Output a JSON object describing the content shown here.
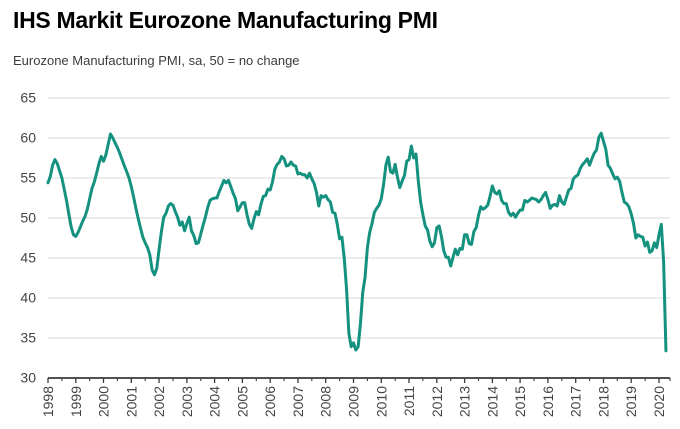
{
  "header": {
    "title": "IHS Markit Eurozone Manufacturing PMI",
    "subtitle": "Eurozone Manufacturing PMI, sa, 50 = no change"
  },
  "chart_data": {
    "type": "line",
    "title": "IHS Markit Eurozone Manufacturing PMI",
    "subtitle": "Eurozone Manufacturing PMI, sa, 50 = no change",
    "grid": "horizontal",
    "legend": "none",
    "x_axis": {
      "frequency": "monthly",
      "start": "1998-01",
      "end": "2020-04",
      "tick_labels": [
        "1998",
        "1999",
        "2000",
        "2001",
        "2002",
        "2003",
        "2004",
        "2005",
        "2006",
        "2007",
        "2008",
        "2009",
        "2010",
        "2011",
        "2012",
        "2013",
        "2014",
        "2015",
        "2016",
        "2017",
        "2018",
        "2019",
        "2020"
      ]
    },
    "y_axis": {
      "range": [
        30,
        65
      ],
      "ticks": [
        30,
        35,
        40,
        45,
        50,
        55,
        60,
        65
      ]
    },
    "colors": {
      "gridline": "#d9d9d9",
      "axis": "#3a3a3a",
      "label": "#444444"
    },
    "series": [
      {
        "name": "Eurozone Manufacturing PMI (sa)",
        "color": "#14917f",
        "values": [
          54.4,
          55.2,
          56.6,
          57.3,
          56.8,
          55.9,
          55.0,
          53.6,
          52.2,
          50.5,
          48.9,
          47.9,
          47.7,
          48.2,
          48.9,
          49.6,
          50.2,
          51.1,
          52.4,
          53.7,
          54.5,
          55.6,
          56.8,
          57.7,
          57.1,
          57.9,
          59.2,
          60.5,
          60.0,
          59.4,
          58.8,
          58.1,
          57.3,
          56.5,
          55.8,
          55.0,
          53.9,
          52.6,
          51.2,
          49.9,
          48.7,
          47.6,
          46.9,
          46.3,
          45.4,
          43.5,
          42.9,
          43.7,
          46.1,
          48.3,
          50.1,
          50.6,
          51.5,
          51.8,
          51.6,
          50.8,
          50.1,
          49.1,
          49.5,
          48.4,
          49.3,
          50.1,
          48.4,
          47.8,
          46.8,
          46.9,
          48.0,
          49.1,
          50.1,
          51.3,
          52.2,
          52.4,
          52.5,
          52.5,
          53.3,
          54.0,
          54.7,
          54.4,
          54.7,
          53.9,
          53.1,
          52.4,
          50.9,
          51.4,
          51.9,
          51.9,
          50.4,
          49.2,
          48.7,
          49.9,
          50.8,
          50.4,
          51.7,
          52.7,
          52.8,
          53.6,
          53.5,
          54.5,
          56.1,
          56.7,
          57.0,
          57.7,
          57.4,
          56.5,
          56.6,
          57.0,
          56.6,
          56.5,
          55.5,
          55.6,
          55.4,
          55.4,
          55.0,
          55.6,
          54.9,
          54.3,
          53.2,
          51.5,
          52.8,
          52.6,
          52.8,
          52.3,
          52.0,
          50.7,
          50.6,
          49.2,
          47.4,
          47.6,
          45.0,
          41.1,
          35.6,
          33.9,
          34.4,
          33.5,
          33.9,
          36.8,
          40.7,
          42.6,
          46.3,
          48.2,
          49.3,
          50.7,
          51.2,
          51.6,
          52.4,
          54.2,
          56.6,
          57.6,
          55.8,
          55.6,
          56.7,
          55.1,
          53.8,
          54.6,
          55.3,
          57.1,
          57.3,
          59.0,
          57.5,
          58.0,
          54.6,
          52.0,
          50.4,
          49.0,
          48.5,
          47.1,
          46.4,
          46.9,
          48.8,
          49.0,
          47.7,
          45.9,
          45.1,
          45.1,
          44.0,
          45.1,
          46.1,
          45.4,
          46.2,
          46.1,
          47.9,
          47.9,
          46.8,
          46.7,
          48.3,
          48.8,
          50.3,
          51.4,
          51.1,
          51.3,
          51.6,
          52.7,
          54.0,
          53.2,
          53.0,
          53.4,
          52.2,
          51.8,
          51.8,
          50.7,
          50.3,
          50.6,
          50.1,
          50.6,
          51.0,
          51.0,
          52.2,
          52.0,
          52.2,
          52.5,
          52.4,
          52.3,
          52.0,
          52.3,
          52.8,
          53.2,
          52.3,
          51.2,
          51.6,
          51.7,
          51.5,
          52.8,
          52.0,
          51.7,
          52.6,
          53.5,
          53.7,
          54.9,
          55.2,
          55.4,
          56.2,
          56.7,
          57.0,
          57.4,
          56.6,
          57.4,
          58.1,
          58.5,
          60.1,
          60.6,
          59.6,
          58.6,
          56.6,
          56.2,
          55.5,
          54.9,
          55.1,
          54.6,
          53.2,
          52.0,
          51.8,
          51.4,
          50.5,
          49.3,
          47.5,
          47.9,
          47.7,
          47.6,
          46.5,
          47.0,
          45.7,
          45.9,
          46.9,
          46.3,
          47.9,
          49.2,
          44.5,
          33.4
        ]
      }
    ]
  }
}
